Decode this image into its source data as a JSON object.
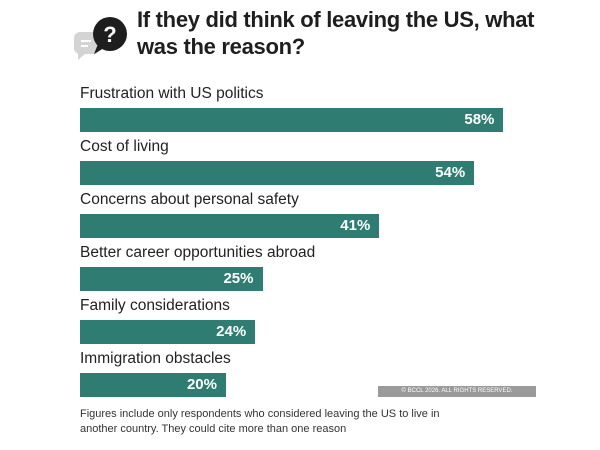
{
  "title": "If they did think of leaving the US, what was the reason?",
  "icons": {
    "header": "question-chat-icon"
  },
  "colors": {
    "bar": "#2f7d72",
    "bar_label": "#ffffff",
    "icon_dark": "#1e1e1e",
    "icon_light": "#d4d4d4"
  },
  "chart_data": {
    "type": "bar",
    "orientation": "horizontal",
    "categories": [
      "Frustration with US politics",
      "Cost of living",
      "Concerns about personal safety",
      "Better career opportunities abroad",
      "Family considerations",
      "Immigration obstacles"
    ],
    "values": [
      58,
      54,
      41,
      25,
      24,
      20
    ],
    "data_labels": [
      "58%",
      "54%",
      "41%",
      "25%",
      "24%",
      "20%"
    ],
    "unit": "%",
    "xlim": [
      0,
      100
    ],
    "grid": false,
    "legend": "none"
  },
  "copyright": "© BCCL 2026. ALL RIGHTS RESERVED.",
  "footnote": "Figures include only respondents who considered leaving the US to live in another country. They could cite more than one reason"
}
